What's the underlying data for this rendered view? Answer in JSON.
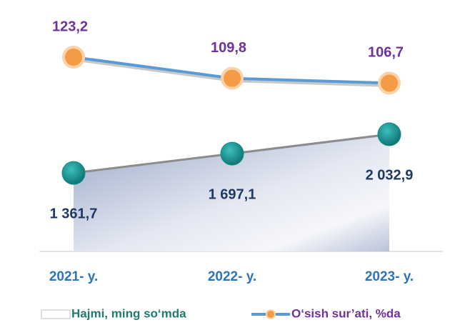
{
  "chart_data": {
    "type": "combo",
    "categories": [
      "2021- y.",
      "2022- y.",
      "2023- y."
    ],
    "series": [
      {
        "name": "Hajmi, ming so‘mda",
        "type": "area",
        "color": "#138a8a",
        "values": [
          1361.7,
          1697.1,
          2032.9
        ],
        "value_labels": [
          "1 361,7",
          "1 697,1",
          "2 032,9"
        ]
      },
      {
        "name": "O‘sish sur’ati, %da",
        "type": "line",
        "color": "#5b9bd5",
        "marker_color": "#f59a45",
        "values": [
          123.2,
          109.8,
          106.7
        ],
        "value_labels": [
          "123,2",
          "109,8",
          "106,7"
        ]
      }
    ]
  }
}
